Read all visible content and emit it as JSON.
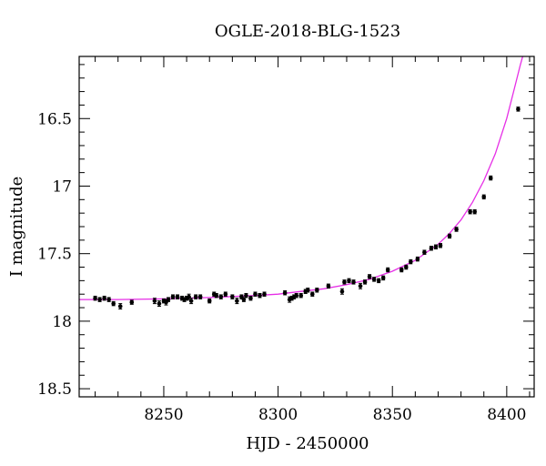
{
  "chart_data": {
    "type": "scatter",
    "title": "OGLE-2018-BLG-1523",
    "xlabel": "HJD - 2450000",
    "ylabel": "I magnitude",
    "xlim": [
      8213,
      8412
    ],
    "ylim": [
      18.56,
      16.04
    ],
    "y_inverted": true,
    "xticks": [
      8250,
      8300,
      8350,
      8400
    ],
    "xtick_labels": [
      "8250",
      "8300",
      "8350",
      "8400"
    ],
    "yticks": [
      16.5,
      17,
      17.5,
      18,
      18.5
    ],
    "ytick_labels": [
      "16.5",
      "17",
      "17.5",
      "18",
      "18.5"
    ],
    "grid": false,
    "colors": {
      "data": "#000000",
      "model": "#e62ee6",
      "axes": "#000000"
    },
    "series": [
      {
        "kind": "points_with_errorbars",
        "x": [
          8220,
          8222,
          8224,
          8226,
          8228,
          8231,
          8236,
          8246,
          8248,
          8250,
          8251,
          8252,
          8254,
          8256,
          8258,
          8259,
          8260,
          8261,
          8262,
          8264,
          8266,
          8270,
          8272,
          8273,
          8275,
          8277,
          8280,
          8282,
          8284,
          8285,
          8286,
          8288,
          8290,
          8292,
          8294,
          8303,
          8305,
          8306,
          8307,
          8308,
          8310,
          8312,
          8313,
          8315,
          8317,
          8322,
          8328,
          8329,
          8331,
          8333,
          8336,
          8338,
          8340,
          8342,
          8344,
          8346,
          8348,
          8354,
          8356,
          8358,
          8361,
          8364,
          8367,
          8369,
          8371,
          8375,
          8378,
          8384,
          8386,
          8390,
          8393,
          8405
        ],
        "y": [
          17.83,
          17.84,
          17.83,
          17.84,
          17.87,
          17.89,
          17.86,
          17.85,
          17.87,
          17.85,
          17.86,
          17.84,
          17.82,
          17.82,
          17.83,
          17.84,
          17.83,
          17.82,
          17.85,
          17.82,
          17.82,
          17.85,
          17.8,
          17.81,
          17.82,
          17.8,
          17.82,
          17.85,
          17.82,
          17.84,
          17.81,
          17.83,
          17.8,
          17.81,
          17.8,
          17.79,
          17.84,
          17.83,
          17.82,
          17.81,
          17.81,
          17.78,
          17.77,
          17.8,
          17.77,
          17.74,
          17.78,
          17.71,
          17.7,
          17.71,
          17.74,
          17.71,
          17.67,
          17.69,
          17.7,
          17.68,
          17.62,
          17.62,
          17.6,
          17.56,
          17.54,
          17.49,
          17.46,
          17.45,
          17.44,
          17.37,
          17.32,
          17.19,
          17.19,
          17.08,
          16.94,
          16.43
        ],
        "yerr": [
          0.015,
          0.015,
          0.015,
          0.015,
          0.015,
          0.02,
          0.015,
          0.02,
          0.02,
          0.015,
          0.02,
          0.015,
          0.015,
          0.015,
          0.015,
          0.015,
          0.015,
          0.02,
          0.02,
          0.015,
          0.015,
          0.015,
          0.015,
          0.015,
          0.015,
          0.015,
          0.015,
          0.02,
          0.015,
          0.015,
          0.015,
          0.015,
          0.015,
          0.015,
          0.015,
          0.015,
          0.02,
          0.015,
          0.015,
          0.015,
          0.015,
          0.015,
          0.015,
          0.015,
          0.015,
          0.015,
          0.02,
          0.015,
          0.015,
          0.015,
          0.02,
          0.015,
          0.015,
          0.015,
          0.015,
          0.015,
          0.015,
          0.015,
          0.015,
          0.015,
          0.015,
          0.015,
          0.015,
          0.015,
          0.015,
          0.015,
          0.015,
          0.015,
          0.015,
          0.015,
          0.015,
          0.015
        ]
      },
      {
        "kind": "model_curve",
        "x": [
          8213,
          8230,
          8250,
          8270,
          8290,
          8300,
          8310,
          8320,
          8330,
          8340,
          8350,
          8360,
          8370,
          8375,
          8380,
          8385,
          8390,
          8395,
          8400,
          8403,
          8406,
          8408,
          8410
        ],
        "y": [
          17.84,
          17.84,
          17.835,
          17.825,
          17.81,
          17.8,
          17.78,
          17.76,
          17.73,
          17.69,
          17.63,
          17.55,
          17.43,
          17.35,
          17.25,
          17.12,
          16.96,
          16.76,
          16.5,
          16.3,
          16.1,
          15.98,
          15.85
        ]
      }
    ]
  }
}
